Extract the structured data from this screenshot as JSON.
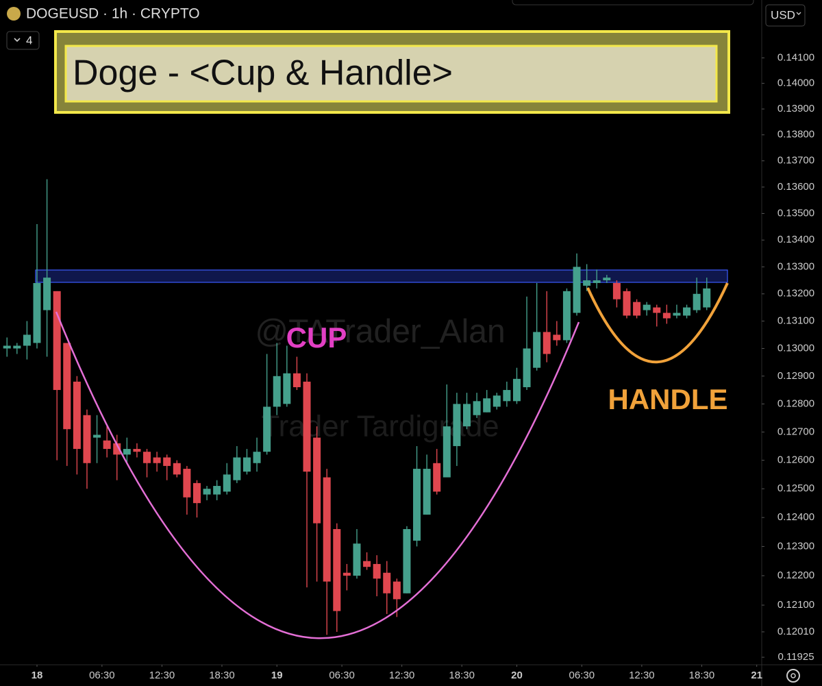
{
  "chart_data": {
    "type": "candlestick",
    "header": "DOGEUSD · 1h · CRYPTO",
    "currency": "USD",
    "indicator_count": 4,
    "title": "Doge - <Cup & Handle>",
    "annotations": [
      {
        "text": "CUP",
        "color": "#e23fc4"
      },
      {
        "text": "HANDLE",
        "color": "#f1a23a"
      }
    ],
    "watermarks": [
      "@TATrader_Alan",
      "Trader Tardigrade"
    ],
    "log_scale": true,
    "grid": false,
    "up_color": "#45a08c",
    "down_color": "#e0474f",
    "xlim": [
      -3.7,
      72.5
    ],
    "xticks": [
      {
        "value": 0,
        "label": "18"
      },
      {
        "value": 6.5,
        "label": "06:30"
      },
      {
        "value": 12.5,
        "label": "12:30"
      },
      {
        "value": 18.5,
        "label": "18:30"
      },
      {
        "value": 24,
        "label": "19"
      },
      {
        "value": 30.5,
        "label": "06:30"
      },
      {
        "value": 36.5,
        "label": "12:30"
      },
      {
        "value": 42.5,
        "label": "18:30"
      },
      {
        "value": 48,
        "label": "20"
      },
      {
        "value": 54.5,
        "label": "06:30"
      },
      {
        "value": 60.5,
        "label": "12:30"
      },
      {
        "value": 66.5,
        "label": "18:30"
      },
      {
        "value": 72,
        "label": "21"
      }
    ],
    "ylim": [
      0.119,
      0.1433
    ],
    "yticks": [
      {
        "value": 0.141,
        "label": "0.14100"
      },
      {
        "value": 0.14,
        "label": "0.14000"
      },
      {
        "value": 0.139,
        "label": "0.13900"
      },
      {
        "value": 0.138,
        "label": "0.13800"
      },
      {
        "value": 0.137,
        "label": "0.13700"
      },
      {
        "value": 0.136,
        "label": "0.13600"
      },
      {
        "value": 0.135,
        "label": "0.13500"
      },
      {
        "value": 0.134,
        "label": "0.13400"
      },
      {
        "value": 0.133,
        "label": "0.13300"
      },
      {
        "value": 0.132,
        "label": "0.13200"
      },
      {
        "value": 0.131,
        "label": "0.13100"
      },
      {
        "value": 0.13,
        "label": "0.13000"
      },
      {
        "value": 0.129,
        "label": "0.12900"
      },
      {
        "value": 0.128,
        "label": "0.12800"
      },
      {
        "value": 0.127,
        "label": "0.12700"
      },
      {
        "value": 0.126,
        "label": "0.12600"
      },
      {
        "value": 0.125,
        "label": "0.12500"
      },
      {
        "value": 0.124,
        "label": "0.12400"
      },
      {
        "value": 0.123,
        "label": "0.12300"
      },
      {
        "value": 0.122,
        "label": "0.12200"
      },
      {
        "value": 0.121,
        "label": "0.12100"
      },
      {
        "value": 0.1201,
        "label": "0.12010"
      },
      {
        "value": 0.11925,
        "label": "0.11925"
      }
    ],
    "x": [
      -3,
      -2,
      -1,
      0,
      1,
      2,
      3,
      4,
      5,
      6,
      7,
      8,
      9,
      10,
      11,
      12,
      13,
      14,
      15,
      16,
      17,
      18,
      19,
      20,
      21,
      22,
      23,
      24,
      25,
      26,
      27,
      28,
      29,
      30,
      31,
      32,
      33,
      34,
      35,
      36,
      37,
      38,
      39,
      40,
      41,
      42,
      43,
      44,
      45,
      46,
      47,
      48,
      49,
      50,
      51,
      52,
      53,
      54,
      55,
      56,
      57,
      58,
      59,
      60,
      61,
      62,
      63,
      64,
      65,
      66,
      67
    ],
    "open": [
      0.13,
      0.13,
      0.1301,
      0.1302,
      0.1314,
      0.1321,
      0.1302,
      0.1288,
      0.1276,
      0.1268,
      0.1267,
      0.1266,
      0.1262,
      0.1264,
      0.1263,
      0.1261,
      0.1261,
      0.1259,
      0.1257,
      0.1252,
      0.1248,
      0.1248,
      0.1249,
      0.1253,
      0.1256,
      0.1259,
      0.1263,
      0.1279,
      0.128,
      0.1291,
      0.1288,
      0.1268,
      0.1254,
      0.1236,
      0.1221,
      0.122,
      0.1225,
      0.1224,
      0.1221,
      0.1218,
      0.1214,
      0.1232,
      0.1241,
      0.1259,
      0.1254,
      0.1265,
      0.1272,
      0.1276,
      0.1277,
      0.1279,
      0.1281,
      0.1281,
      0.1286,
      0.1293,
      0.1306,
      0.1305,
      0.1303,
      0.1313,
      0.1323,
      0.1324,
      0.1325,
      0.1324,
      0.1321,
      0.1317,
      0.1314,
      0.1315,
      0.1313,
      0.1312,
      0.1312,
      0.1314,
      0.1315
    ],
    "high": [
      0.1304,
      0.1302,
      0.131,
      0.1346,
      0.1363,
      0.1321,
      0.1302,
      0.129,
      0.1278,
      0.1276,
      0.1272,
      0.1269,
      0.1268,
      0.1266,
      0.1264,
      0.1263,
      0.1262,
      0.126,
      0.1258,
      0.1253,
      0.1251,
      0.1253,
      0.1259,
      0.1265,
      0.1264,
      0.1268,
      0.1298,
      0.1302,
      0.1301,
      0.1297,
      0.1291,
      0.1272,
      0.1257,
      0.1238,
      0.1224,
      0.1236,
      0.1228,
      0.1227,
      0.1225,
      0.1219,
      0.1237,
      0.1265,
      0.1262,
      0.1264,
      0.1287,
      0.1284,
      0.1284,
      0.1284,
      0.1285,
      0.1284,
      0.1288,
      0.1293,
      0.1319,
      0.1324,
      0.1321,
      0.131,
      0.1322,
      0.1335,
      0.1331,
      0.1329,
      0.1327,
      0.1325,
      0.1322,
      0.1318,
      0.1317,
      0.1316,
      0.1316,
      0.1316,
      0.1316,
      0.1326,
      0.1326
    ],
    "low": [
      0.1297,
      0.1298,
      0.1296,
      0.13,
      0.1297,
      0.126,
      0.1258,
      0.1255,
      0.125,
      0.1259,
      0.1261,
      0.1253,
      0.1259,
      0.1261,
      0.1254,
      0.1256,
      0.1253,
      0.1254,
      0.1241,
      0.124,
      0.1246,
      0.1246,
      0.1248,
      0.1252,
      0.1255,
      0.1256,
      0.1262,
      0.1276,
      0.1279,
      0.1285,
      0.1216,
      0.1218,
      0.12,
      0.1201,
      0.1215,
      0.1219,
      0.1222,
      0.1213,
      0.1207,
      0.1206,
      0.1214,
      0.123,
      0.1241,
      0.1248,
      0.1254,
      0.1258,
      0.1271,
      0.1275,
      0.1277,
      0.1278,
      0.1279,
      0.128,
      0.1285,
      0.1292,
      0.1295,
      0.1301,
      0.1302,
      0.1312,
      0.1321,
      0.1322,
      0.1324,
      0.1315,
      0.1311,
      0.1311,
      0.1312,
      0.1308,
      0.1309,
      0.1311,
      0.1311,
      0.1313,
      0.1314
    ],
    "close": [
      0.1301,
      0.1301,
      0.1305,
      0.1324,
      0.1326,
      0.1285,
      0.1271,
      0.1264,
      0.1259,
      0.1269,
      0.1264,
      0.1262,
      0.1264,
      0.1263,
      0.1259,
      0.1259,
      0.1258,
      0.1255,
      0.1247,
      0.1245,
      0.125,
      0.1251,
      0.1255,
      0.1261,
      0.1261,
      0.1263,
      0.1279,
      0.129,
      0.1291,
      0.1286,
      0.1256,
      0.1238,
      0.1218,
      0.1208,
      0.122,
      0.1231,
      0.1223,
      0.1219,
      0.1214,
      0.1212,
      0.1236,
      0.1257,
      0.1257,
      0.1249,
      0.1272,
      0.128,
      0.128,
      0.1281,
      0.1282,
      0.1283,
      0.1285,
      0.1289,
      0.13,
      0.1306,
      0.1298,
      0.1303,
      0.1321,
      0.133,
      0.1325,
      0.1325,
      0.1326,
      0.1318,
      0.1312,
      0.1312,
      0.1316,
      0.1313,
      0.1311,
      0.1313,
      0.1315,
      0.132,
      0.1322
    ]
  }
}
